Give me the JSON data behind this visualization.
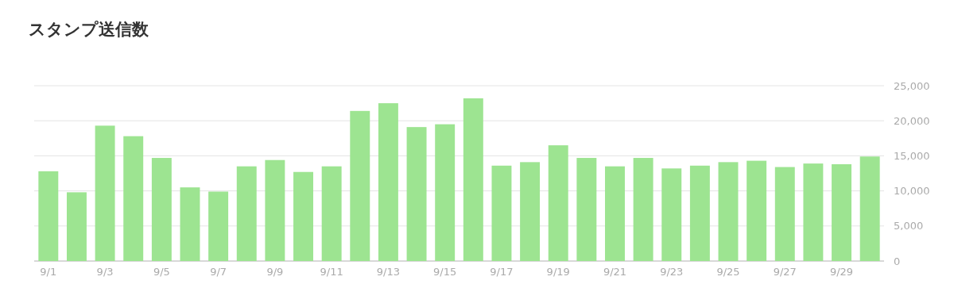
{
  "chart_data": {
    "type": "bar",
    "title": "スタンプ送信数",
    "categories": [
      "9/1",
      null,
      "9/3",
      null,
      "9/5",
      null,
      "9/7",
      null,
      "9/9",
      null,
      "9/11",
      null,
      "9/13",
      null,
      "9/15",
      null,
      "9/17",
      null,
      "9/19",
      null,
      "9/21",
      null,
      "9/23",
      null,
      "9/25",
      null,
      "9/27",
      null,
      "9/29",
      null
    ],
    "values": [
      12800,
      9800,
      19300,
      17800,
      14700,
      10500,
      9900,
      13500,
      14400,
      12700,
      13500,
      21400,
      22500,
      19100,
      19500,
      23200,
      13600,
      14100,
      16500,
      14700,
      13500,
      14700,
      13200,
      13600,
      14100,
      14300,
      13400,
      13900,
      13800,
      14900
    ],
    "color": "#9de491",
    "ylim": [
      0,
      25000
    ],
    "yticks": [
      {
        "value": 0,
        "label": "0"
      },
      {
        "value": 5000,
        "label": "5,000"
      },
      {
        "value": 10000,
        "label": "10,000"
      },
      {
        "value": 15000,
        "label": "15,000"
      },
      {
        "value": 20000,
        "label": "20,000"
      },
      {
        "value": 25000,
        "label": "25,000"
      }
    ],
    "grid": true
  }
}
